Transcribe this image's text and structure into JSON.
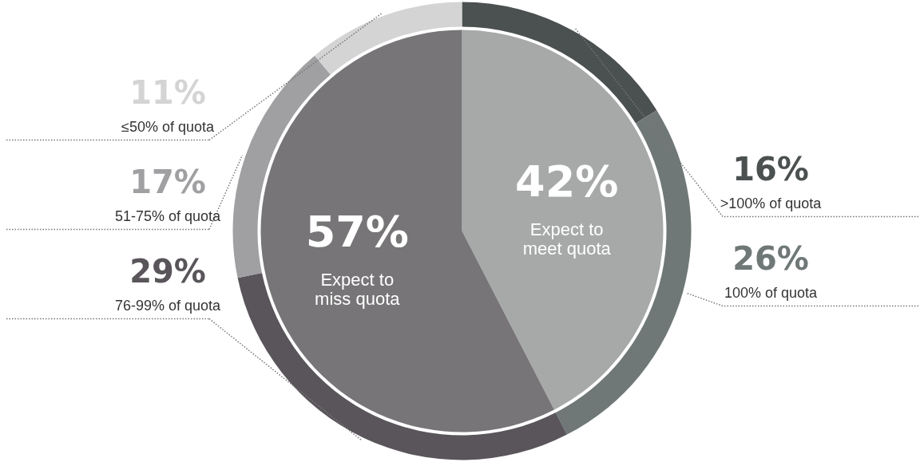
{
  "chart_data": [
    {
      "type": "pie",
      "categories": [
        "Expect to meet quota",
        "Expect to miss quota"
      ],
      "values": [
        42,
        57
      ],
      "colors": [
        "#a7a9a8",
        "#777577"
      ],
      "value_labels": [
        "42%",
        "57%"
      ]
    },
    {
      "type": "donut",
      "categories": [
        ">100% of quota",
        "100% of quota",
        "76-99% of quota",
        "51-75% of quota",
        "≤50% of quota"
      ],
      "values": [
        16,
        26,
        29,
        17,
        11
      ],
      "colors": [
        "#4b5050",
        "#6f7877",
        "#59555a",
        "#a09fa1",
        "#d4d4d4"
      ],
      "value_labels": [
        "16%",
        "26%",
        "29%",
        "17%",
        "11%"
      ]
    }
  ]
}
